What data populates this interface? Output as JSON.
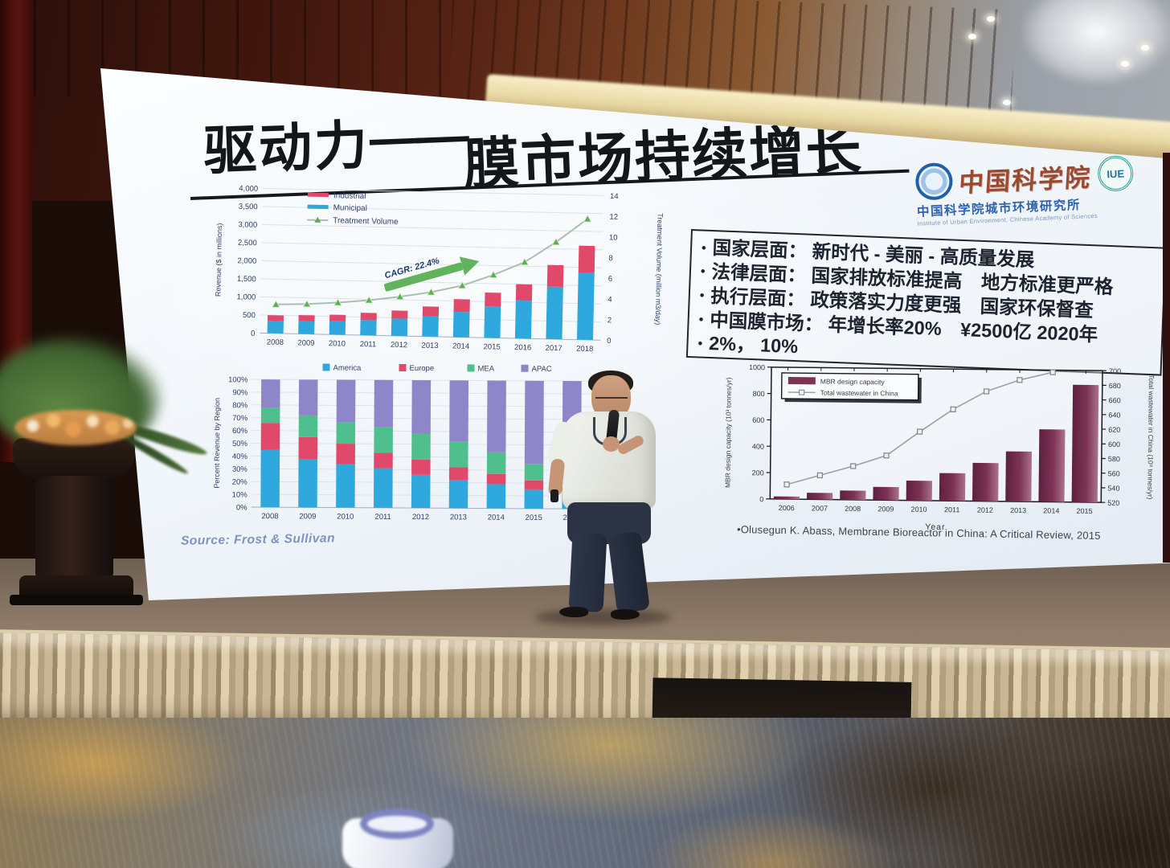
{
  "slide": {
    "title": "驱动力——膜市场持续增长",
    "title_part1": "驱动力",
    "title_dash": "——",
    "title_part2": "膜市场持续增长",
    "logo": {
      "cas_script": "中国科学院",
      "iue_label": "IUE",
      "institute_cn": "中国科学院城市环境研究所",
      "institute_en": "Institute of Urban Environment, Chinese Academy of Sciences"
    },
    "bullet_marker": "•",
    "bullets": [
      "国家层面： 新时代 - 美丽 - 高质量发展",
      "法律层面： 国家排放标准提高　地方标准更严格",
      "执行层面： 政策落实力度更强　国家环保督查",
      "中国膜市场： 年增长率20%　¥2500亿 2020年",
      "2%， 10%"
    ],
    "source_note": "Source: Frost & Sullivan",
    "citation": "•Olusegun K. Abass, Membrane Bioreactor in China: A Critical Review, 2015"
  },
  "colors": {
    "bar_blue": "#2fa8dd",
    "bar_red": "#e0496a",
    "bar_green": "#4fc08d",
    "bar_purple": "#8f86c9",
    "mbr_maroon": "#7e3355",
    "arrow_green": "#54ad4e",
    "line_gray_green": "#a9bfb0",
    "axis_text_blue": "#2e3e66",
    "screen_bg": "#eef3f8",
    "curtain_red": "#4a1210",
    "skirt_beige": "#c9b795",
    "carpet_blue": "#667184",
    "carpet_gold": "#c89a55"
  },
  "chart_data": [
    {
      "type": "bar",
      "subtype": "stacked-bar-with-line",
      "title": "",
      "categories": [
        "2008",
        "2009",
        "2010",
        "2011",
        "2012",
        "2013",
        "2014",
        "2015",
        "2016",
        "2017",
        "2018"
      ],
      "series": [
        {
          "name": "Municipal",
          "color": "#2fa8dd",
          "values": [
            340,
            350,
            370,
            420,
            480,
            560,
            700,
            870,
            1050,
            1450,
            1850
          ]
        },
        {
          "name": "Industrial",
          "color": "#e0496a",
          "values": [
            160,
            170,
            180,
            200,
            220,
            270,
            350,
            380,
            450,
            600,
            750
          ]
        }
      ],
      "line": {
        "name": "Treatment Volume",
        "color": "#a9bfb0",
        "marker_color": "#58b14e",
        "axis": "right",
        "values": [
          2.8,
          2.9,
          3.1,
          3.4,
          3.8,
          4.3,
          5.0,
          6.1,
          7.4,
          9.4,
          11.7
        ]
      },
      "ylabel_left": "Revenue ($ in millions)",
      "ylim_left": [
        0,
        4000
      ],
      "ytick_left": 500,
      "ylabel_right": "Treatment Volume (million m3/day)",
      "ylim_right": [
        0,
        14
      ],
      "ytick_right": 2,
      "annotation": "CAGR: 22.4%",
      "legend_position": "upper-left",
      "grid": true
    },
    {
      "type": "bar",
      "subtype": "stacked-bar-100pct",
      "title": "",
      "categories": [
        "2008",
        "2009",
        "2010",
        "2011",
        "2012",
        "2013",
        "2014",
        "2015",
        "2016"
      ],
      "series": [
        {
          "name": "America",
          "color": "#2fa8dd",
          "values": [
            45,
            38,
            34,
            31,
            26,
            22,
            19,
            15,
            13
          ]
        },
        {
          "name": "Europe",
          "color": "#e0496a",
          "values": [
            21,
            17,
            16,
            12,
            12,
            10,
            8,
            7,
            7
          ]
        },
        {
          "name": "MEA",
          "color": "#4fc08d",
          "values": [
            12,
            17,
            17,
            20,
            20,
            20,
            17,
            13,
            12
          ]
        },
        {
          "name": "APAC",
          "color": "#8f86c9",
          "values": [
            22,
            28,
            33,
            37,
            42,
            48,
            56,
            65,
            68
          ]
        }
      ],
      "ylabel": "Percent Revenue by Region",
      "ylim": [
        0,
        100
      ],
      "ytick": 10,
      "legend_position": "top",
      "grid": true
    },
    {
      "type": "bar",
      "subtype": "bar-with-line",
      "title": "",
      "categories": [
        "2006",
        "2007",
        "2008",
        "2009",
        "2010",
        "2011",
        "2012",
        "2013",
        "2014",
        "2015"
      ],
      "bars": {
        "name": "MBR design capacity",
        "color": "#7e3355",
        "values": [
          20,
          50,
          70,
          100,
          150,
          210,
          290,
          380,
          550,
          890
        ]
      },
      "line": {
        "name": "Total wastewater in China",
        "color": "#9aa0a4",
        "axis": "right",
        "values": [
          540,
          553,
          566,
          581,
          614,
          645,
          670,
          686,
          697
        ]
      },
      "xlabel": "Year",
      "ylabel_left": "MBR design capacity (10³ tonnes/yr)",
      "ylim_left": [
        0,
        1000
      ],
      "ytick_left": 200,
      "ylabel_right": "Total wastewater in China (10⁸ tonnes/yr)",
      "ylim_right": [
        520,
        700
      ],
      "ytick_right": 20,
      "legend_position": "upper-left",
      "grid": false
    }
  ]
}
